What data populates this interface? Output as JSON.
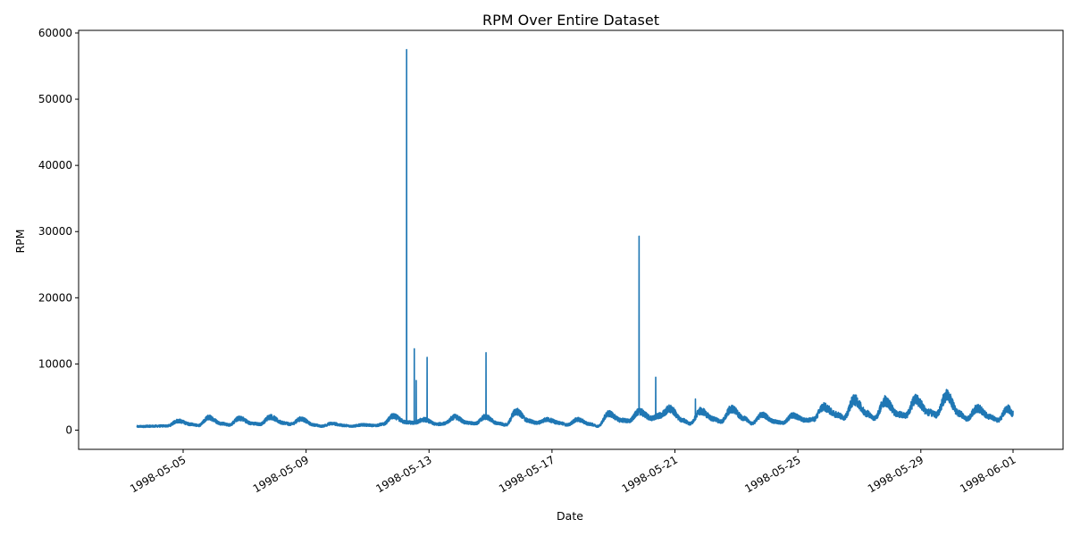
{
  "chart_data": {
    "type": "line",
    "title": "RPM Over Entire Dataset",
    "xlabel": "Date",
    "ylabel": "RPM",
    "x_range": [
      "1998-05-02",
      "1998-06-01"
    ],
    "ylim": [
      -2900,
      60400
    ],
    "yticks": [
      0,
      10000,
      20000,
      30000,
      40000,
      50000,
      60000
    ],
    "xticks": [
      "1998-05-05",
      "1998-05-09",
      "1998-05-13",
      "1998-05-17",
      "1998-05-21",
      "1998-05-25",
      "1998-05-29",
      "1998-06-01"
    ],
    "grid": false,
    "series": [
      {
        "color": "#1f77b4",
        "baseline_points": [
          [
            "1998-05-03 12:00",
            550
          ],
          [
            "1998-05-04 00:00",
            600
          ],
          [
            "1998-05-04 12:00",
            650
          ],
          [
            "1998-05-04 20:00",
            1400
          ],
          [
            "1998-05-05 06:00",
            900
          ],
          [
            "1998-05-05 12:00",
            700
          ],
          [
            "1998-05-05 20:00",
            1900
          ],
          [
            "1998-05-06 06:00",
            1000
          ],
          [
            "1998-05-06 12:00",
            800
          ],
          [
            "1998-05-06 20:00",
            1800
          ],
          [
            "1998-05-07 06:00",
            1000
          ],
          [
            "1998-05-07 12:00",
            900
          ],
          [
            "1998-05-07 20:00",
            2000
          ],
          [
            "1998-05-08 06:00",
            1100
          ],
          [
            "1998-05-08 12:00",
            900
          ],
          [
            "1998-05-08 20:00",
            1700
          ],
          [
            "1998-05-09 06:00",
            800
          ],
          [
            "1998-05-09 12:00",
            600
          ],
          [
            "1998-05-09 20:00",
            1000
          ],
          [
            "1998-05-10 06:00",
            700
          ],
          [
            "1998-05-10 12:00",
            600
          ],
          [
            "1998-05-10 20:00",
            800
          ],
          [
            "1998-05-11 06:00",
            700
          ],
          [
            "1998-05-11 12:00",
            900
          ],
          [
            "1998-05-11 20:00",
            2100
          ],
          [
            "1998-05-12 06:00",
            1200
          ],
          [
            "1998-05-12 12:00",
            1100
          ],
          [
            "1998-05-12 20:00",
            1600
          ],
          [
            "1998-05-13 06:00",
            900
          ],
          [
            "1998-05-13 12:00",
            1000
          ],
          [
            "1998-05-13 20:00",
            2000
          ],
          [
            "1998-05-14 06:00",
            1100
          ],
          [
            "1998-05-14 12:00",
            1000
          ],
          [
            "1998-05-14 20:00",
            2000
          ],
          [
            "1998-05-15 06:00",
            1000
          ],
          [
            "1998-05-15 12:00",
            800
          ],
          [
            "1998-05-15 20:00",
            2800
          ],
          [
            "1998-05-16 06:00",
            1400
          ],
          [
            "1998-05-16 12:00",
            1100
          ],
          [
            "1998-05-16 20:00",
            1600
          ],
          [
            "1998-05-17 06:00",
            1100
          ],
          [
            "1998-05-17 12:00",
            800
          ],
          [
            "1998-05-17 20:00",
            1600
          ],
          [
            "1998-05-18 06:00",
            900
          ],
          [
            "1998-05-18 12:00",
            600
          ],
          [
            "1998-05-18 20:00",
            2500
          ],
          [
            "1998-05-19 06:00",
            1500
          ],
          [
            "1998-05-19 12:00",
            1400
          ],
          [
            "1998-05-19 20:00",
            2800
          ],
          [
            "1998-05-20 06:00",
            1800
          ],
          [
            "1998-05-20 12:00",
            2200
          ],
          [
            "1998-05-20 20:00",
            3200
          ],
          [
            "1998-05-21 06:00",
            1500
          ],
          [
            "1998-05-21 12:00",
            1000
          ],
          [
            "1998-05-21 20:00",
            2900
          ],
          [
            "1998-05-22 06:00",
            1700
          ],
          [
            "1998-05-22 12:00",
            1300
          ],
          [
            "1998-05-22 20:00",
            3200
          ],
          [
            "1998-05-23 06:00",
            1800
          ],
          [
            "1998-05-23 12:00",
            1000
          ],
          [
            "1998-05-23 20:00",
            2300
          ],
          [
            "1998-05-24 06:00",
            1300
          ],
          [
            "1998-05-24 12:00",
            1100
          ],
          [
            "1998-05-24 20:00",
            2200
          ],
          [
            "1998-05-25 06:00",
            1500
          ],
          [
            "1998-05-25 12:00",
            1600
          ],
          [
            "1998-05-25 20:00",
            3500
          ],
          [
            "1998-05-26 06:00",
            2400
          ],
          [
            "1998-05-26 12:00",
            1900
          ],
          [
            "1998-05-26 20:00",
            4600
          ],
          [
            "1998-05-27 06:00",
            2500
          ],
          [
            "1998-05-27 12:00",
            1800
          ],
          [
            "1998-05-27 20:00",
            4400
          ],
          [
            "1998-05-28 06:00",
            2400
          ],
          [
            "1998-05-28 12:00",
            2200
          ],
          [
            "1998-05-28 20:00",
            4600
          ],
          [
            "1998-05-29 06:00",
            2700
          ],
          [
            "1998-05-29 12:00",
            2300
          ],
          [
            "1998-05-29 20:00",
            5200
          ],
          [
            "1998-05-30 06:00",
            2500
          ],
          [
            "1998-05-30 12:00",
            1700
          ],
          [
            "1998-05-30 20:00",
            3300
          ],
          [
            "1998-05-31 06:00",
            2000
          ],
          [
            "1998-05-31 12:00",
            1500
          ],
          [
            "1998-05-31 20:00",
            3200
          ],
          [
            "1998-06-01 00:00",
            2500
          ]
        ],
        "spikes": [
          [
            "1998-05-12 06:30",
            57500
          ],
          [
            "1998-05-12 12:30",
            12300
          ],
          [
            "1998-05-12 14:00",
            7500
          ],
          [
            "1998-05-12 22:30",
            11000
          ],
          [
            "1998-05-14 20:30",
            11700
          ],
          [
            "1998-05-19 20:00",
            29300
          ],
          [
            "1998-05-20 09:00",
            8000
          ],
          [
            "1998-05-21 16:00",
            4700
          ],
          [
            "1998-05-29 20:00",
            6100
          ]
        ]
      }
    ]
  }
}
